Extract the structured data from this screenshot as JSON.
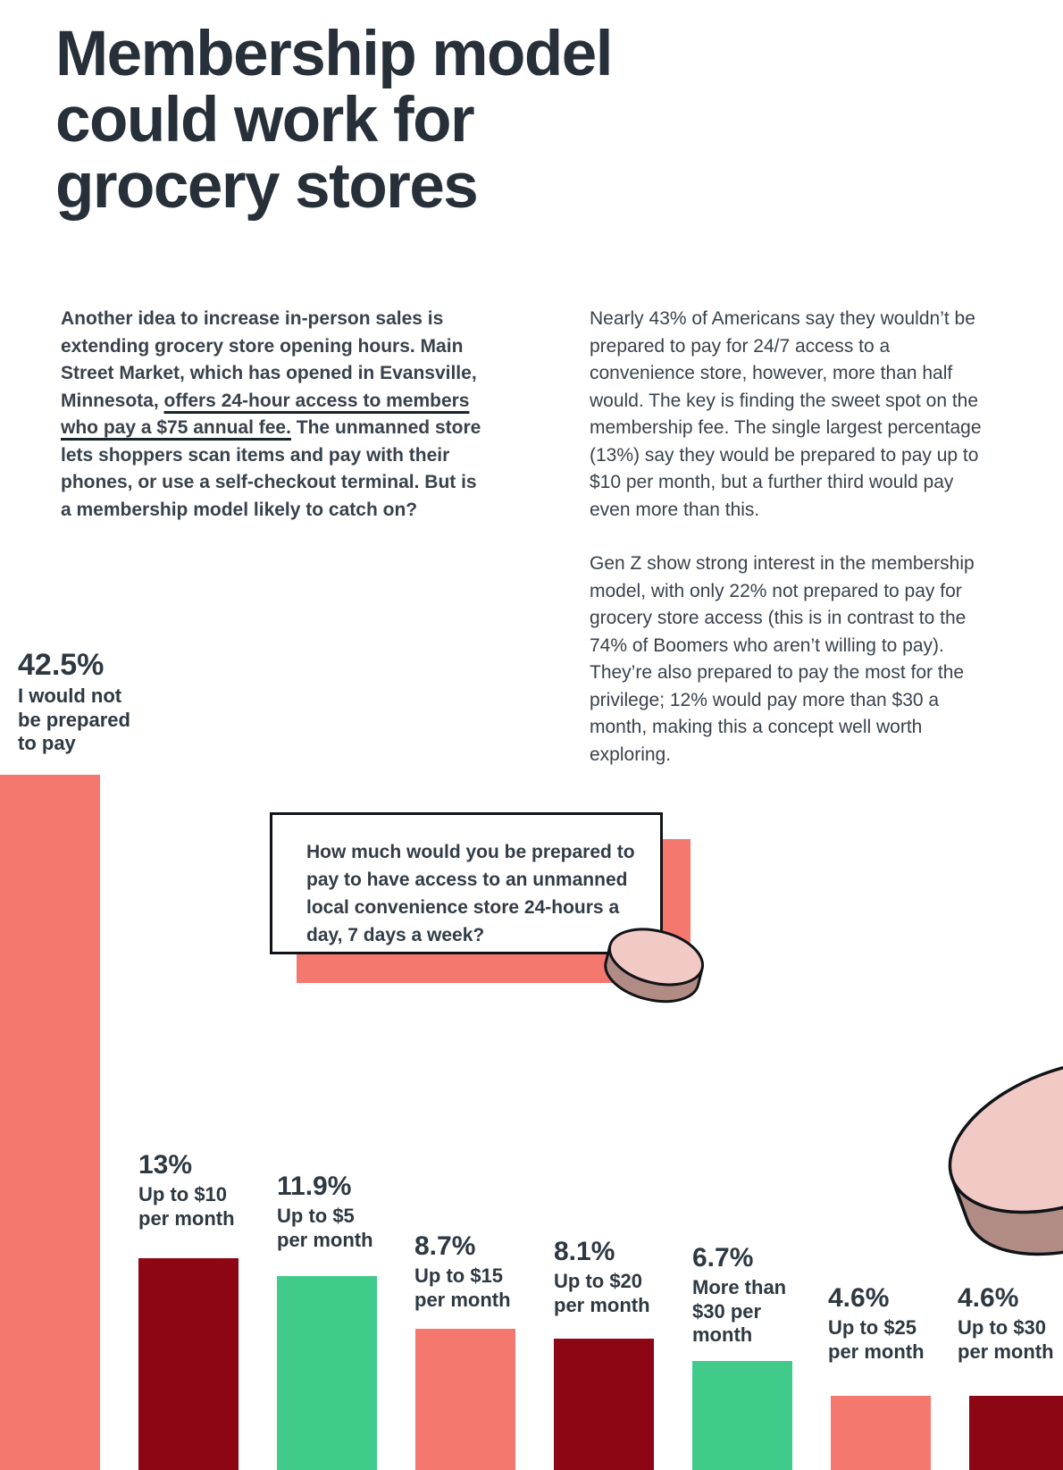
{
  "title": {
    "lines": [
      "Membership model",
      "could work for",
      "grocery stores"
    ]
  },
  "intro": {
    "pre": "Another idea to increase in-person sales is extending grocery store opening hours. Main Street Market, which has opened in Evansville, Minnesota, ",
    "link": "offers 24-hour access to members who pay a $75 annual fee.",
    "post": " The unmanned store lets shoppers scan items and pay with their phones, or use a self-checkout terminal. But is a membership model likely to catch on?"
  },
  "analysis": {
    "paragraph_1": "Nearly 43% of Americans say they wouldn’t be prepared to pay for 24/7 access to a convenience store, however, more than half would. The key is finding the sweet spot on the membership fee. The single largest percentage (13%) say they would be prepared to pay up to $10 per month, but a further third would pay even more than this.",
    "paragraph_2": "Gen Z show strong interest in the membership model, with only 22% not prepared to pay for grocery store access (this is in contrast to the 74% of Boomers who aren’t willing to pay). They’re also prepared to pay the most for the privilege; 12% would pay more than $30 a month, making this a concept well worth exploring."
  },
  "chart_data": {
    "type": "bar",
    "question": "How much would you be prepared to pay to have access to an unmanned local convenience store 24-hours a day, 7 days a week?",
    "unit": "%",
    "categories": [
      "I would not be prepared to pay",
      "Up to $10 per month",
      "Up to $5 per month",
      "Up to $15 per month",
      "Up to $20 per month",
      "More than $30 per month",
      "Up to $25 per month",
      "Up to $30 per month"
    ],
    "category_lines": [
      [
        "I would not",
        "be prepared",
        "to pay"
      ],
      [
        "Up to $10",
        "per month"
      ],
      [
        "Up to $5",
        "per month"
      ],
      [
        "Up to $15",
        "per month"
      ],
      [
        "Up to $20",
        "per month"
      ],
      [
        "More than",
        "$30 per",
        "month"
      ],
      [
        "Up to $25",
        "per month"
      ],
      [
        "Up to $30",
        "per month"
      ]
    ],
    "values": [
      42.5,
      13,
      11.9,
      8.7,
      8.1,
      6.7,
      4.6,
      4.6
    ],
    "value_labels": [
      "42.5%",
      "13%",
      "11.9%",
      "8.7%",
      "8.1%",
      "6.7%",
      "4.6%",
      "4.6%"
    ],
    "bar_colors": [
      "#f4786e",
      "#8c0713",
      "#41cb8a",
      "#f4786e",
      "#8c0713",
      "#41cb8a",
      "#f4786e",
      "#8c0713"
    ],
    "ylim": [
      0,
      45
    ],
    "gridlines": false,
    "legend": false,
    "axis_labels": "none (values labeled above each bar)"
  },
  "colors": {
    "salmon": "#f4786e",
    "dark_red": "#8c0713",
    "green": "#41cb8a",
    "title_ink": "#272f39",
    "body_text": "#39424c",
    "coin_face": "#f2cac5",
    "coin_rim": "#b18c85",
    "outline": "#101418",
    "background": "#ffffff"
  }
}
